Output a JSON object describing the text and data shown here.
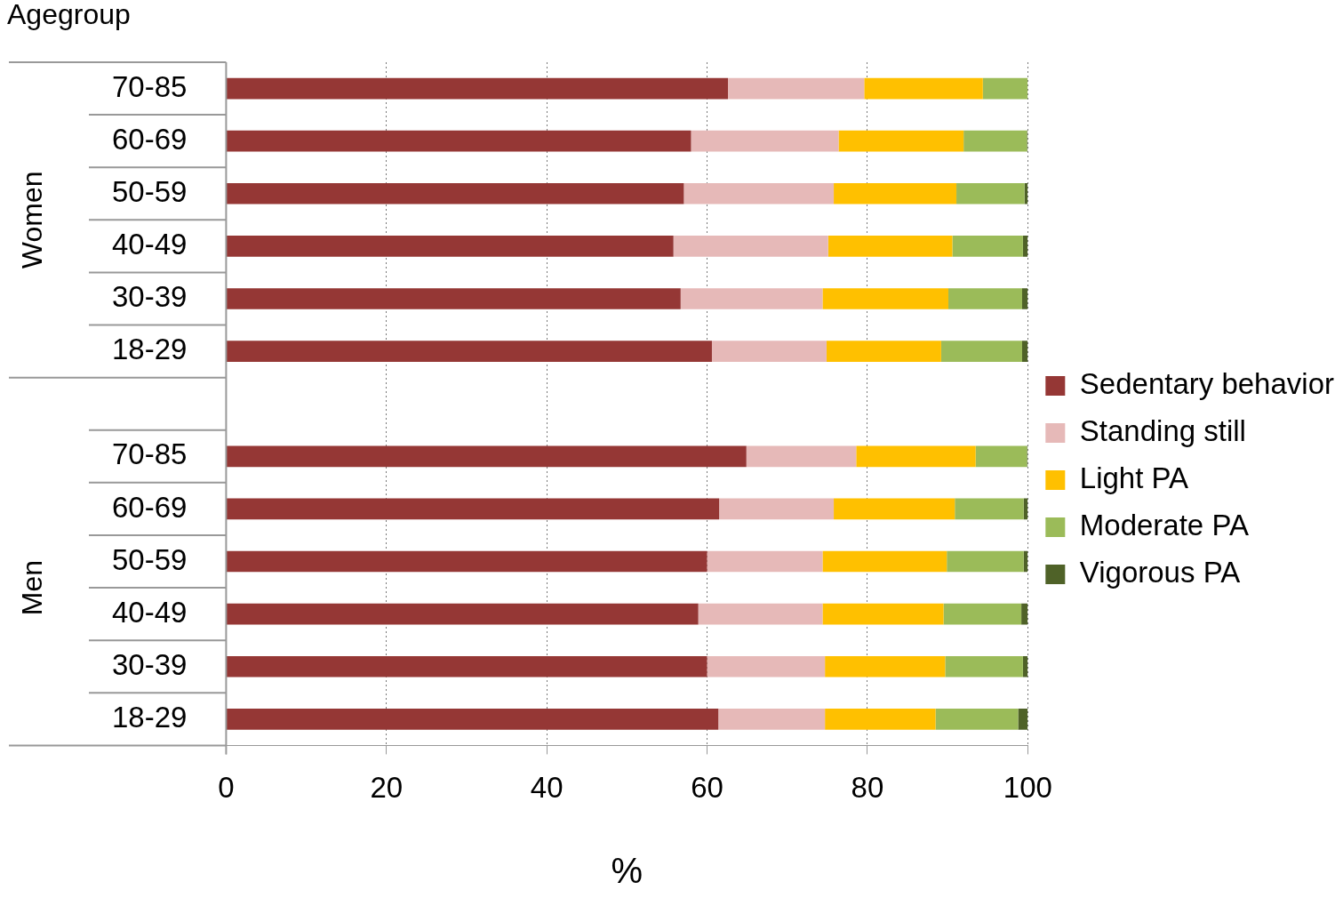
{
  "chart_data": {
    "type": "bar",
    "orientation": "horizontal",
    "stacked": true,
    "xlabel": "%",
    "ylabel": "Agegroup",
    "annotations": [
      "Women",
      "Men"
    ],
    "categories": [
      "70-85",
      "60-69",
      "50-59",
      "40-49",
      "30-39",
      "18-29",
      null,
      "70-85",
      "60-69",
      "50-59",
      "40-49",
      "30-39",
      "18-29"
    ],
    "series": [
      {
        "name": "Sedentary behavior",
        "color": "#953735",
        "values": [
          62.6,
          58.0,
          57.1,
          55.8,
          56.7,
          60.6,
          null,
          64.9,
          61.5,
          60.0,
          58.9,
          60.0,
          61.4
        ]
      },
      {
        "name": "Standing still",
        "color": "#e6b9b8",
        "values": [
          17.0,
          18.4,
          18.7,
          19.3,
          17.7,
          14.3,
          null,
          13.7,
          14.3,
          14.4,
          15.5,
          14.7,
          13.3
        ]
      },
      {
        "name": "Light PA",
        "color": "#ffc000",
        "values": [
          14.8,
          15.6,
          15.3,
          15.5,
          15.7,
          14.3,
          null,
          14.9,
          15.1,
          15.5,
          15.1,
          15.0,
          13.8
        ]
      },
      {
        "name": "Moderate PA",
        "color": "#9bbb59",
        "values": [
          5.6,
          7.9,
          8.5,
          8.8,
          9.2,
          10.1,
          null,
          6.4,
          8.6,
          9.6,
          9.7,
          9.7,
          10.3
        ]
      },
      {
        "name": "Vigorous PA",
        "color": "#4f6228",
        "values": [
          0,
          0.1,
          0.4,
          0.6,
          0.7,
          0.7,
          null,
          0.1,
          0.5,
          0.5,
          0.8,
          0.6,
          1.2
        ]
      }
    ],
    "xlim": [
      0,
      100
    ],
    "xticks": [
      0,
      20,
      40,
      60,
      80,
      100
    ],
    "grid": "x",
    "legend": "right"
  }
}
